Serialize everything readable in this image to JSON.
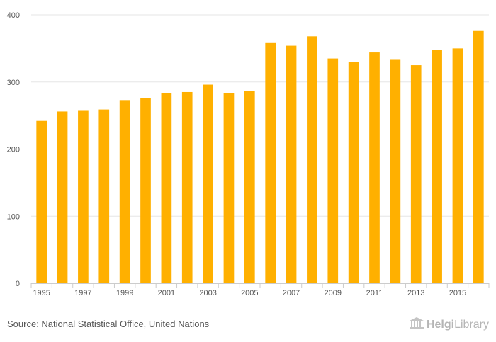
{
  "chart_data": {
    "type": "bar",
    "title": "",
    "xlabel": "",
    "ylabel": "",
    "ylim": [
      0,
      400
    ],
    "yticks": [
      0,
      100,
      200,
      300,
      400
    ],
    "grid": true,
    "categories": [
      "1995",
      "1996",
      "1997",
      "1998",
      "1999",
      "2000",
      "2001",
      "2002",
      "2003",
      "2004",
      "2005",
      "2006",
      "2007",
      "2008",
      "2009",
      "2010",
      "2011",
      "2012",
      "2013",
      "2014",
      "2015",
      "2016"
    ],
    "xtick_labels": [
      "1995",
      "1997",
      "1999",
      "2001",
      "2003",
      "2005",
      "2007",
      "2009",
      "2011",
      "2013",
      "2015"
    ],
    "values": [
      242,
      256,
      257,
      259,
      273,
      276,
      283,
      285,
      296,
      283,
      287,
      358,
      354,
      368,
      335,
      330,
      344,
      333,
      325,
      348,
      350,
      376
    ],
    "bar_color": "#ffb000"
  },
  "footer": {
    "source": "Source: National Statistical Office, United Nations",
    "brand_bold": "Helgi",
    "brand_rest": "Library",
    "brand_color": "#b5b5b5"
  }
}
